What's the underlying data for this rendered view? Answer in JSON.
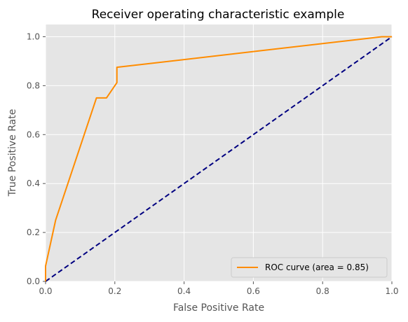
{
  "chart_data": {
    "type": "line",
    "title": "Receiver operating characteristic example",
    "xlabel": "False Positive Rate",
    "ylabel": "True Positive Rate",
    "xlim": [
      0.0,
      1.0
    ],
    "ylim": [
      0.0,
      1.05
    ],
    "xticks": [
      "0.0",
      "0.2",
      "0.4",
      "0.6",
      "0.8",
      "1.0"
    ],
    "yticks": [
      "0.0",
      "0.2",
      "0.4",
      "0.6",
      "0.8",
      "1.0"
    ],
    "grid": true,
    "legend_position": "lower-right",
    "series": [
      {
        "name": "ROC curve (area = 0.85)",
        "color": "#ff8c00",
        "style": "solid",
        "x": [
          0.0,
          0.0,
          0.029,
          0.147,
          0.176,
          0.206,
          0.206,
          0.971,
          1.0
        ],
        "y": [
          0.0,
          0.0625,
          0.25,
          0.75,
          0.75,
          0.8125,
          0.875,
          1.0,
          1.0
        ]
      },
      {
        "color": "#000080",
        "style": "dashed",
        "x": [
          0.0,
          1.0
        ],
        "y": [
          0.0,
          1.0
        ]
      }
    ]
  },
  "colors": {
    "plot_background": "#e5e5e5",
    "grid": "#ffffff",
    "legend_background": "#e5e5e5",
    "legend_border": "#cccccc"
  }
}
